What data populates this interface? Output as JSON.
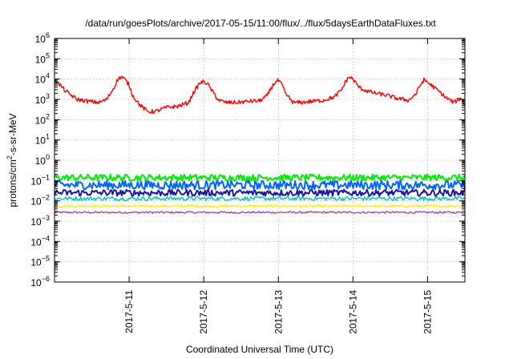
{
  "chart_data": {
    "type": "line",
    "title": "/data/run/goesPlots/archive/2017-05-15/11:00/flux/../flux/5daysEarthDataFluxes.txt",
    "xlabel": "Coordinated Universal Time (UTC)",
    "ylabel_parts": [
      "protons/cm",
      "2",
      "-s-sr-MeV"
    ],
    "yscale": "log",
    "ylim_exp": [
      -6,
      6
    ],
    "ytick_exps": [
      -6,
      -5,
      -4,
      -3,
      -2,
      -1,
      0,
      1,
      2,
      3,
      4,
      5,
      6
    ],
    "ytick_base": "10",
    "xlim": [
      0.0,
      5.5
    ],
    "xunit": "days since 2017-05-10 00:00 UTC",
    "xticks": [
      {
        "x": 1,
        "label": "2017-5-11"
      },
      {
        "x": 2,
        "label": "2017-5-12"
      },
      {
        "x": 3,
        "label": "2017-5-13"
      },
      {
        "x": 4,
        "label": "2017-5-14"
      },
      {
        "x": 5,
        "label": "2017-5-15"
      }
    ],
    "grid": true,
    "series": [
      {
        "name": "",
        "color": "#ff0000",
        "x": [
          0.0,
          0.15,
          0.3,
          0.45,
          0.6,
          0.7,
          0.75,
          0.8,
          0.85,
          0.9,
          0.95,
          1.0,
          1.05,
          1.15,
          1.25,
          1.35,
          1.5,
          1.65,
          1.8,
          1.85,
          1.9,
          1.95,
          2.0,
          2.05,
          2.1,
          2.2,
          2.3,
          2.45,
          2.6,
          2.75,
          2.85,
          2.9,
          2.95,
          3.0,
          3.05,
          3.1,
          3.2,
          3.3,
          3.45,
          3.6,
          3.75,
          3.85,
          3.9,
          3.95,
          4.0,
          4.05,
          4.1,
          4.2,
          4.3,
          4.45,
          4.6,
          4.75,
          4.85,
          4.9,
          4.95,
          5.0,
          5.05,
          5.15,
          5.25,
          5.35,
          5.45,
          5.5
        ],
        "y": [
          10000,
          2500,
          1000,
          800,
          700,
          1000,
          2000,
          4000,
          10000,
          13000,
          9000,
          5000,
          1500,
          500,
          250,
          250,
          400,
          450,
          700,
          1800,
          3500,
          6500,
          7500,
          6000,
          3000,
          900,
          700,
          700,
          800,
          850,
          1500,
          3500,
          6500,
          8500,
          5000,
          1800,
          700,
          700,
          800,
          900,
          1300,
          3000,
          7500,
          13000,
          10000,
          5500,
          3500,
          2500,
          2000,
          1600,
          1100,
          900,
          2000,
          5000,
          9000,
          7000,
          5000,
          2500,
          1200,
          700,
          1200,
          500
        ]
      },
      {
        "name": "",
        "color": "#00ee00",
        "x": [
          0,
          5.5
        ],
        "y": [
          0.14,
          0.14
        ]
      },
      {
        "name": "",
        "color": "#0066ff",
        "x": [
          0,
          5.5
        ],
        "y": [
          0.06,
          0.06
        ]
      },
      {
        "name": "",
        "color": "#1a1aa0",
        "x": [
          0,
          5.5
        ],
        "y": [
          0.025,
          0.025
        ]
      },
      {
        "name": "",
        "color": "#00c0c0",
        "x": [
          0,
          5.5
        ],
        "y": [
          0.013,
          0.013
        ]
      },
      {
        "name": "",
        "color": "#ffee00",
        "x": [
          0,
          5.5
        ],
        "y": [
          0.0055,
          0.0055
        ]
      },
      {
        "name": "",
        "color": "#993399",
        "x": [
          0,
          5.5
        ],
        "y": [
          0.0027,
          0.0027
        ]
      }
    ]
  }
}
